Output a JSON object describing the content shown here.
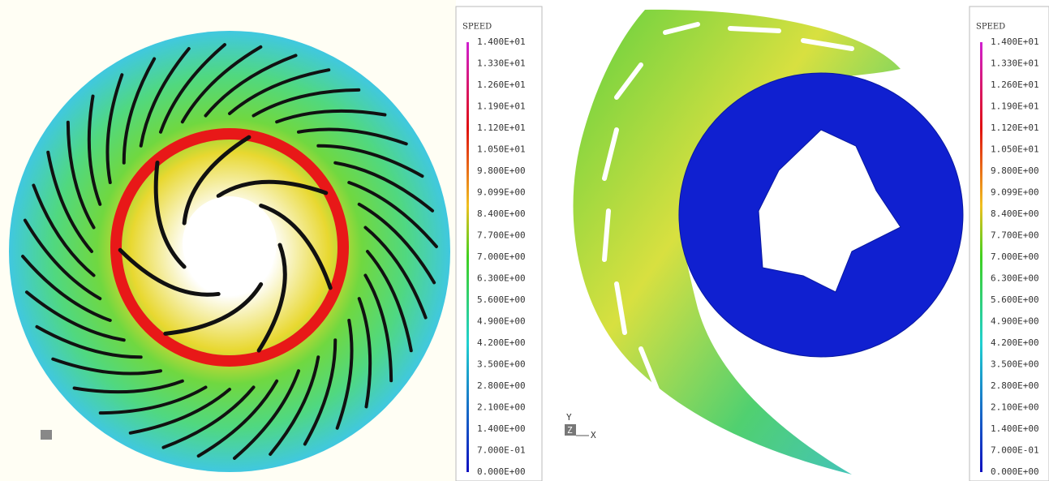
{
  "panels": [
    {
      "legend": {
        "title": "SPEED",
        "labels": [
          "1.400E+01",
          "1.330E+01",
          "1.260E+01",
          "1.190E+01",
          "1.120E+01",
          "1.050E+01",
          "9.800E+00",
          "9.099E+00",
          "8.400E+00",
          "7.700E+00",
          "7.000E+00",
          "6.300E+00",
          "5.600E+00",
          "4.900E+00",
          "4.200E+00",
          "3.500E+00",
          "2.800E+00",
          "2.100E+00",
          "1.400E+00",
          "7.000E-01",
          "0.000E+00"
        ]
      }
    },
    {
      "legend": {
        "title": "SPEED",
        "labels": [
          "1.400E+01",
          "1.330E+01",
          "1.260E+01",
          "1.190E+01",
          "1.120E+01",
          "1.050E+01",
          "9.800E+00",
          "9.099E+00",
          "8.400E+00",
          "7.700E+00",
          "7.000E+00",
          "6.300E+00",
          "5.600E+00",
          "4.900E+00",
          "4.200E+00",
          "3.500E+00",
          "2.800E+00",
          "2.100E+00",
          "1.400E+00",
          "7.000E-01",
          "0.000E+00"
        ]
      },
      "axes": {
        "y": "Y",
        "z": "Z",
        "x": "X"
      }
    }
  ]
}
